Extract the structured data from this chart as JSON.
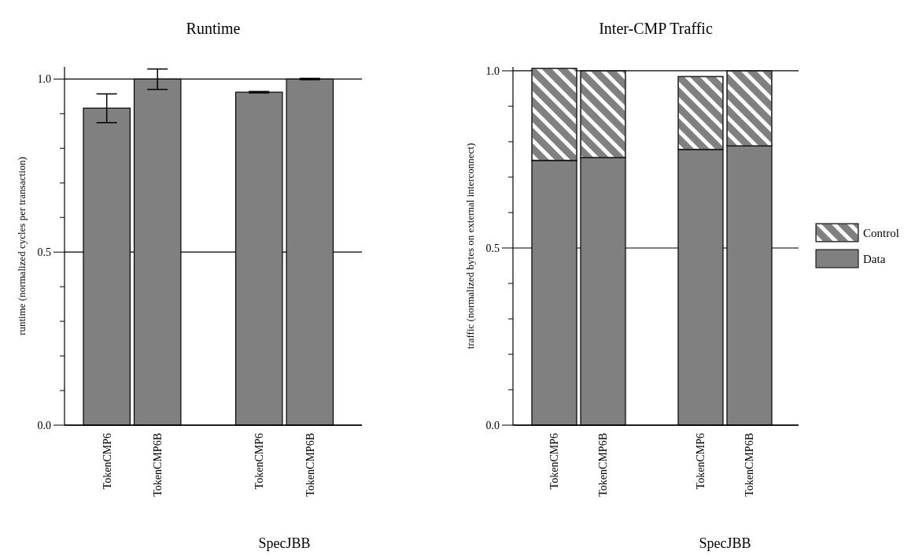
{
  "chart_data": [
    {
      "type": "bar",
      "title": "Runtime",
      "ylabel": "runtime (normalized cycles per transaction)",
      "categories": [
        "TokenCMP6",
        "TokenCMP6B",
        null,
        "TokenCMP6",
        "TokenCMP6B",
        null
      ],
      "values": [
        0.916,
        1.0,
        null,
        0.962,
        1.0,
        null
      ],
      "errors": [
        [
          0.874,
          0.957
        ],
        [
          0.97,
          1.029
        ],
        null,
        [
          0.96,
          0.964
        ],
        [
          0.998,
          1.002
        ],
        null
      ],
      "color": "#808080",
      "ylim": [
        0,
        1.035
      ],
      "yticks": [
        {
          "value": 0,
          "label": "0.0"
        },
        {
          "value": 0.1,
          "label": null
        },
        {
          "value": 0.2,
          "label": null
        },
        {
          "value": 0.3,
          "label": null
        },
        {
          "value": 0.4,
          "label": null
        },
        0.5,
        {
          "value": 0.6,
          "label": null
        },
        {
          "value": 0.7,
          "label": null
        },
        {
          "value": 0.8,
          "label": null
        },
        {
          "value": 0.9,
          "label": null
        },
        {
          "value": 1,
          "label": "1.0"
        }
      ],
      "grid": "y",
      "annotations": [
        "SpecJBB"
      ]
    },
    {
      "type": "bar",
      "title": "Inter-CMP Traffic",
      "ylabel": "traffic (normalized bytes on external interconnect)",
      "categories": [
        "TokenCMP6",
        "TokenCMP6B",
        null,
        "TokenCMP6",
        "TokenCMP6B",
        null
      ],
      "stacked": true,
      "series": [
        {
          "name": "Data",
          "color": "#808080",
          "values": [
            0.747,
            0.755,
            null,
            0.778,
            0.788,
            null
          ]
        },
        {
          "name": "Control",
          "color": "#808080",
          "values": [
            0.26,
            0.245,
            null,
            0.206,
            0.212,
            null
          ]
        }
      ],
      "ylim": [
        0,
        1.011
      ],
      "yticks": [
        {
          "value": 0,
          "label": "0.0"
        },
        {
          "value": 0.1,
          "label": null
        },
        {
          "value": 0.2,
          "label": null
        },
        {
          "value": 0.3,
          "label": null
        },
        {
          "value": 0.4,
          "label": null
        },
        0.5,
        {
          "value": 0.6,
          "label": null
        },
        {
          "value": 0.7,
          "label": null
        },
        {
          "value": 0.8,
          "label": null
        },
        {
          "value": 0.9,
          "label": null
        },
        {
          "value": 1,
          "label": "1.0"
        }
      ],
      "grid": "y",
      "legend": "right",
      "annotations": [
        "SpecJBB"
      ]
    }
  ]
}
